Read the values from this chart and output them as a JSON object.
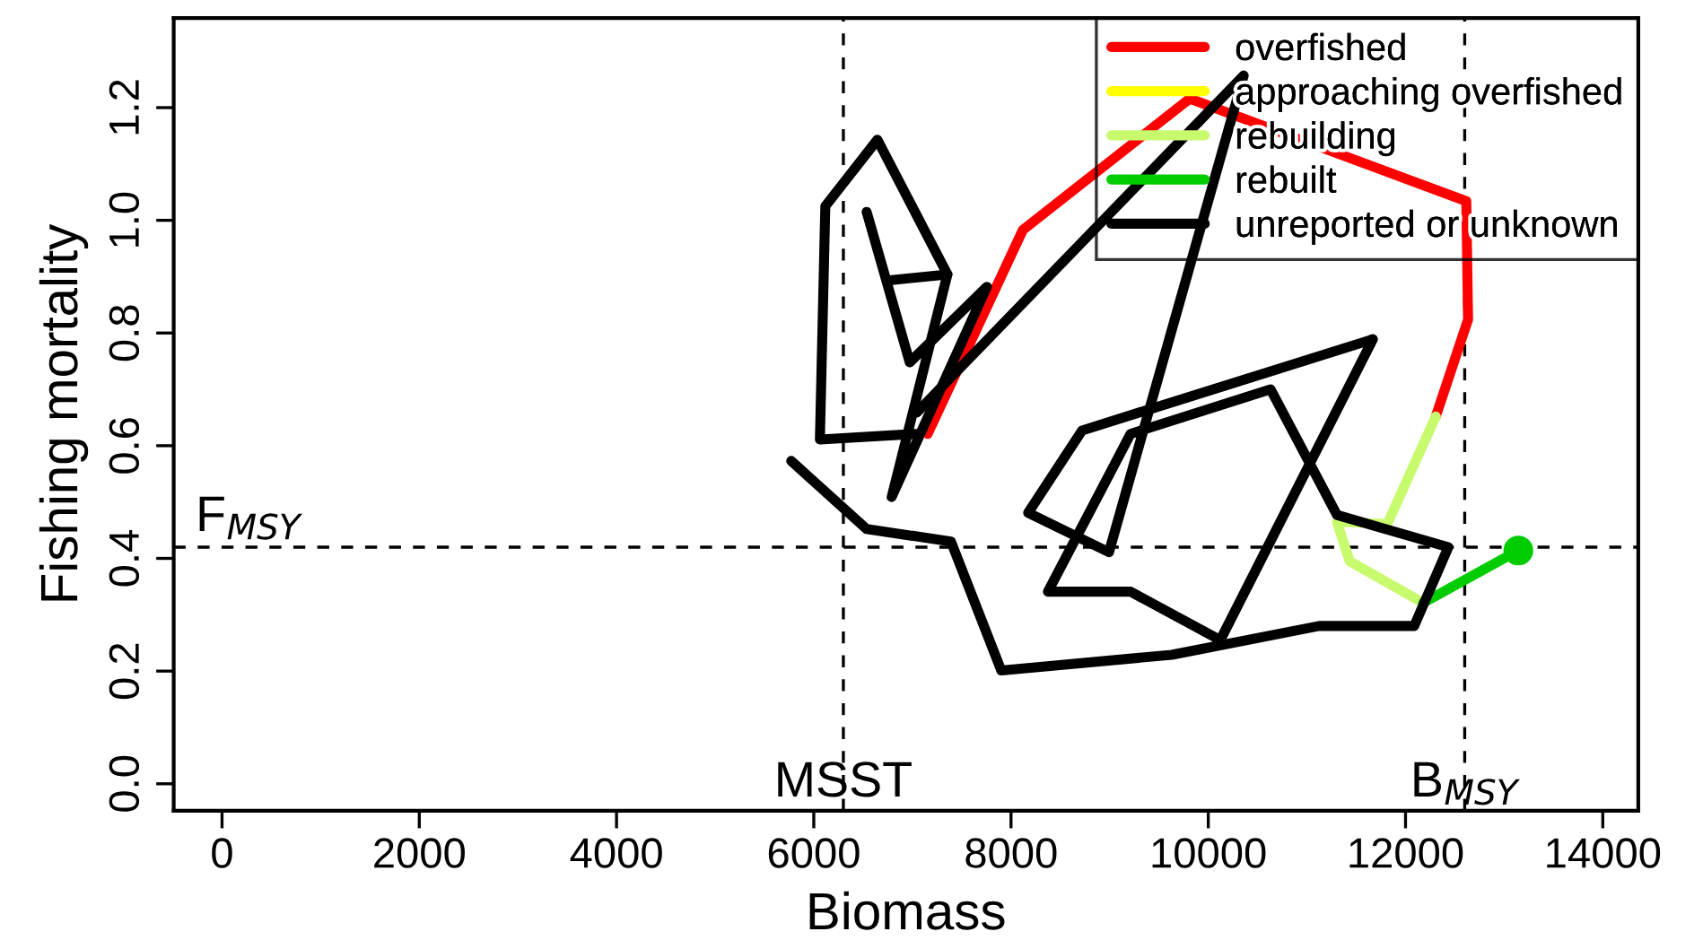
{
  "chart_data": {
    "type": "line",
    "xlabel": "Biomass",
    "ylabel": "Fishing mortality",
    "xlim": [
      -490,
      14360
    ],
    "ylim": [
      -0.048,
      1.359
    ],
    "xticks": [
      0,
      2000,
      4000,
      6000,
      8000,
      10000,
      12000,
      14000
    ],
    "yticks": [
      {
        "value": 0,
        "label": "0.0"
      },
      {
        "value": 0.2,
        "label": "0.2"
      },
      {
        "value": 0.4,
        "label": "0.4"
      },
      {
        "value": 0.6,
        "label": "0.6"
      },
      {
        "value": 0.8,
        "label": "0.8"
      },
      {
        "value": 1.0,
        "label": "1.0"
      },
      {
        "value": 1.2,
        "label": "1.2"
      }
    ],
    "grid": false,
    "legend": "top right",
    "line_style": "solid",
    "marker": "none",
    "ref_lines": [
      {
        "axis": "x",
        "value": 6300,
        "label": "MSST",
        "line_style": "dashed",
        "color": "#000000"
      },
      {
        "axis": "x",
        "value": 12600,
        "label": "B$_{MSY}$",
        "line_style": "dashed",
        "color": "#000000"
      },
      {
        "axis": "y",
        "value": 0.42,
        "label": "F$_{MSY}$",
        "line_style": "dashed",
        "color": "#000000"
      }
    ],
    "series": [
      {
        "name": "overfished",
        "color": "#ff0000",
        "x": [
          7155,
          8120,
          9813,
          12616,
          12634,
          12307
        ],
        "values": [
          0.621,
          0.983,
          1.216,
          1.034,
          0.824,
          0.652
        ]
      },
      {
        "name": "approaching overfished",
        "color": "#ffff00"
      },
      {
        "name": "rebuilding",
        "color": "#c8fa6e",
        "x": [
          12307,
          11815,
          11305,
          11433,
          12179
        ],
        "values": [
          0.652,
          0.461,
          0.465,
          0.395,
          0.321
        ]
      },
      {
        "name": "rebuilt",
        "color": "#00cc00",
        "x": [
          12179,
          13144
        ],
        "values": [
          0.321,
          0.414
        ]
      },
      {
        "name": "unreported or unknown",
        "color": "#000000",
        "x": [
          7045,
          10359,
          8993,
          8174,
          8720,
          11669,
          10122,
          9212,
          8374,
          9212,
          10632,
          11305,
          12434,
          12088,
          11123,
          9631,
          7901,
          7391,
          6536,
          5771
        ],
        "values": [
          0.659,
          1.257,
          0.411,
          0.481,
          0.627,
          0.789,
          0.255,
          0.341,
          0.341,
          0.621,
          0.7,
          0.477,
          0.42,
          0.28,
          0.28,
          0.229,
          0.201,
          0.43,
          0.452,
          0.573
        ]
      },
      {
        "color": "#000000",
        "x": [
          6790,
          7355,
          6645,
          6117,
          6062,
          7027
        ],
        "values": [
          0.894,
          0.904,
          1.143,
          1.025,
          0.611,
          0.621
        ]
      },
      {
        "color": "#000000",
        "x": [
          6536,
          6973,
          7755,
          6790,
          7355
        ],
        "values": [
          1.015,
          0.748,
          0.882,
          0.509,
          0.904
        ]
      },
      {
        "type": "scatter",
        "color": "#00cc00",
        "marker": "circle",
        "x": [
          13144
        ],
        "values": [
          0.414
        ]
      }
    ]
  }
}
